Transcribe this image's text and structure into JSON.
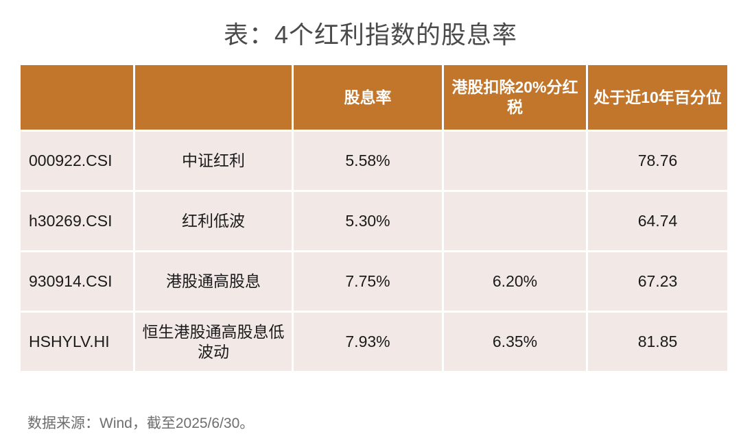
{
  "title": "表：4个红利指数的股息率",
  "table": {
    "headers": [
      "",
      "",
      "股息率",
      "港股扣除20%分红税",
      "处于近10年百分位"
    ],
    "rows": [
      {
        "code": "000922.CSI",
        "name": "中证红利",
        "yield": "5.58%",
        "hk_after_tax": "",
        "percentile": "78.76"
      },
      {
        "code": "h30269.CSI",
        "name": "红利低波",
        "yield": "5.30%",
        "hk_after_tax": "",
        "percentile": "64.74"
      },
      {
        "code": "930914.CSI",
        "name": "港股通高股息",
        "yield": "7.75%",
        "hk_after_tax": "6.20%",
        "percentile": "67.23"
      },
      {
        "code": "HSHYLV.HI",
        "name": "恒生港股通高股息低波动",
        "yield": "7.93%",
        "hk_after_tax": "6.35%",
        "percentile": "81.85"
      }
    ]
  },
  "source": "数据来源：Wind，截至2025/6/30。",
  "colors": {
    "header_bg": "#c1762c",
    "cell_bg": "#f2e9e6",
    "title_text": "#4a4a4a"
  }
}
